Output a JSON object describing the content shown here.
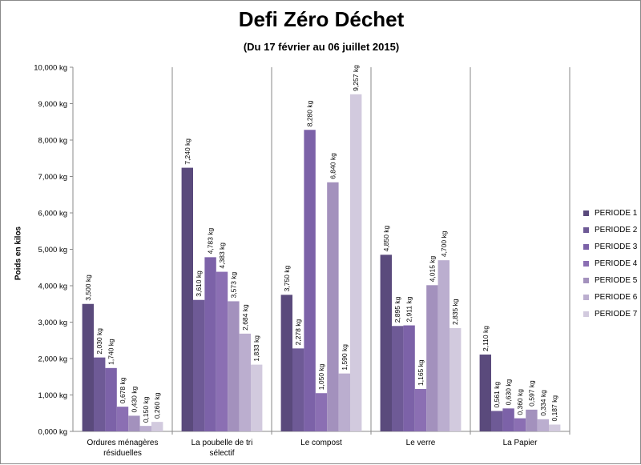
{
  "chart_data": {
    "type": "bar",
    "title": "Defi Zéro Déchet",
    "subtitle": "(Du 17 février au 06 juillet 2015)",
    "ylabel": "Poids en kilos",
    "xlabel": "",
    "ylim": [
      0,
      10
    ],
    "yticks": [
      "0,000 kg",
      "1,000 kg",
      "2,000 kg",
      "3,000 kg",
      "4,000 kg",
      "5,000 kg",
      "6,000 kg",
      "7,000 kg",
      "8,000 kg",
      "9,000 kg",
      "10,000 kg"
    ],
    "grid": "vertical separators between categories",
    "legend_position": "right",
    "categories": [
      "Ordures ménagères résiduelles",
      "La poubelle de tri sélectif",
      "Le compost",
      "Le verre",
      "La Papier"
    ],
    "series": [
      {
        "name": "PERIODE 1",
        "color": "#5a4a7c",
        "values": [
          3.5,
          7.24,
          3.75,
          4.85,
          2.11
        ],
        "labels": [
          "3,500 kg",
          "7,240 kg",
          "3,750 kg",
          "4,850 kg",
          "2,110 kg"
        ]
      },
      {
        "name": "PERIODE 2",
        "color": "#6e5a96",
        "values": [
          2.03,
          3.61,
          2.278,
          2.895,
          0.561
        ],
        "labels": [
          "2,030 kg",
          "3,610 kg",
          "2,278 kg",
          "2,895 kg",
          "0,561 kg"
        ]
      },
      {
        "name": "PERIODE 3",
        "color": "#7c62a8",
        "values": [
          1.74,
          4.783,
          8.28,
          2.911,
          0.63
        ],
        "labels": [
          "1,740 kg",
          "4,783 kg",
          "8,280 kg",
          "2,911 kg",
          "0,630 kg"
        ]
      },
      {
        "name": "PERIODE 4",
        "color": "#8b6fb3",
        "values": [
          0.678,
          4.383,
          1.05,
          1.165,
          0.36
        ],
        "labels": [
          "0,678 kg",
          "4,383 kg",
          "1,050 kg",
          "1,165 kg",
          "0,360 kg"
        ]
      },
      {
        "name": "PERIODE 5",
        "color": "#a391bd",
        "values": [
          0.43,
          3.573,
          6.84,
          4.015,
          0.597
        ],
        "labels": [
          "0,430 kg",
          "3,573 kg",
          "6,840 kg",
          "4,015 kg",
          "0,597 kg"
        ]
      },
      {
        "name": "PERIODE 6",
        "color": "#bbaecf",
        "values": [
          0.15,
          2.684,
          1.59,
          4.7,
          0.334
        ],
        "labels": [
          "0,150 kg",
          "2,684 kg",
          "1,590 kg",
          "4,700 kg",
          "0,334 kg"
        ]
      },
      {
        "name": "PERIODE 7",
        "color": "#d2cade",
        "values": [
          0.26,
          1.833,
          9.257,
          2.835,
          0.187
        ],
        "labels": [
          "0,260 kg",
          "1,833 kg",
          "9,257 kg",
          "2,835 kg",
          "0,187 kg"
        ]
      }
    ]
  }
}
